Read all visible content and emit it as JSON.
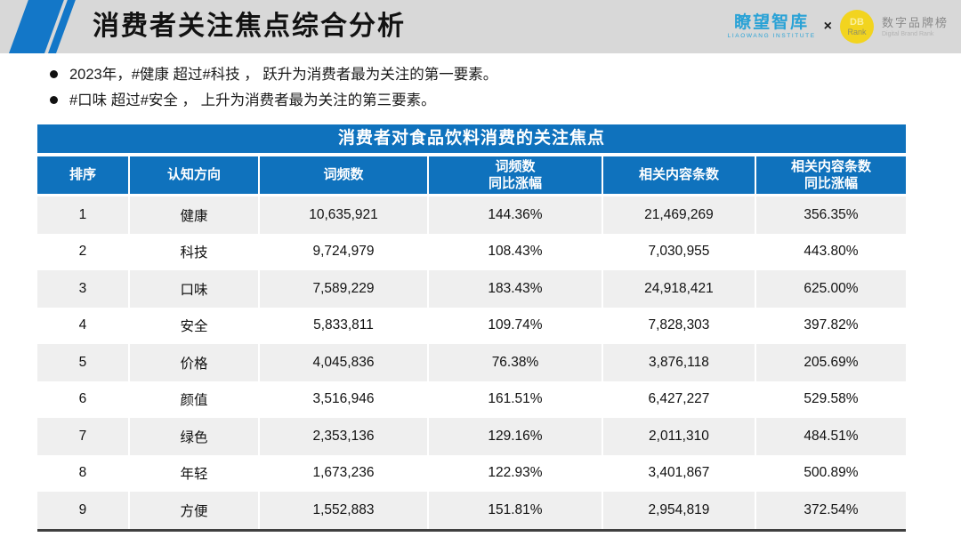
{
  "slide": {
    "title": "消费者关注焦点综合分析",
    "logos": {
      "liaowang": "瞭望智库",
      "liaowang_sub": "LIAOWANG INSTITUTE",
      "times": "×",
      "db_line1": "DB",
      "db_line2": "Rank",
      "dbrank": "数字品牌榜",
      "dbrank_sub": "Digital Brand Rank"
    },
    "bullets": [
      "2023年，#健康 超过#科技 ， 跃升为消费者最为关注的第一要素。",
      "#口味 超过#安全 ， 上升为消费者最为关注的第三要素。"
    ]
  },
  "table": {
    "title": "消费者对食品饮料消费的关注焦点",
    "columns": [
      "排序",
      "认知方向",
      "词频数",
      "词频数\n同比涨幅",
      "相关内容条数",
      "相关内容条数\n同比涨幅"
    ],
    "rows": [
      [
        "1",
        "健康",
        "10,635,921",
        "144.36%",
        "21,469,269",
        "356.35%"
      ],
      [
        "2",
        "科技",
        "9,724,979",
        "108.43%",
        "7,030,955",
        "443.80%"
      ],
      [
        "3",
        "口味",
        "7,589,229",
        "183.43%",
        "24,918,421",
        "625.00%"
      ],
      [
        "4",
        "安全",
        "5,833,811",
        "109.74%",
        "7,828,303",
        "397.82%"
      ],
      [
        "5",
        "价格",
        "4,045,836",
        "76.38%",
        "3,876,118",
        "205.69%"
      ],
      [
        "6",
        "颜值",
        "3,516,946",
        "161.51%",
        "6,427,227",
        "529.58%"
      ],
      [
        "7",
        "绿色",
        "2,353,136",
        "129.16%",
        "2,011,310",
        "484.51%"
      ],
      [
        "8",
        "年轻",
        "1,673,236",
        "122.93%",
        "3,401,867",
        "500.89%"
      ],
      [
        "9",
        "方便",
        "1,552,883",
        "151.81%",
        "2,954,819",
        "372.54%"
      ]
    ]
  },
  "colors": {
    "table_blue": "#0f72bd",
    "stripe_blue": "#1377c8",
    "band_gray": "#d8d8d8",
    "row_stripe_gray": "#efefef",
    "bottom_border": "#3f3f3f",
    "liaowang_blue": "#29a2d6",
    "dbrank_yellow": "#f2d41f",
    "dbrank_gray": "#8a8a8a"
  }
}
